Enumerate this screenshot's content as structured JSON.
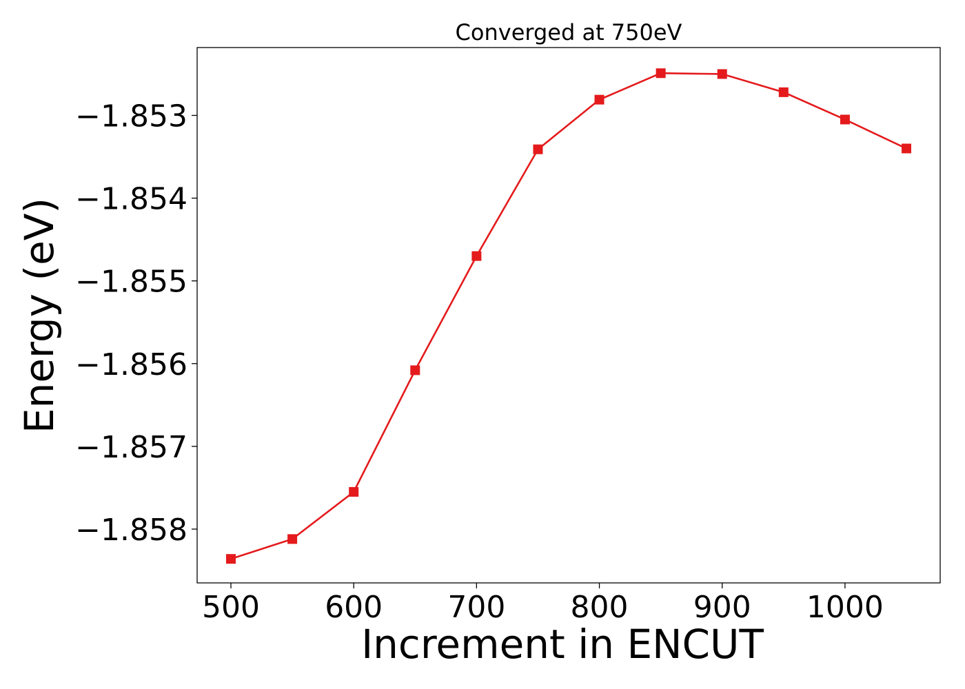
{
  "chart_data": {
    "type": "line",
    "title": "Converged at 750eV",
    "xlabel": "Increment in ENCUT",
    "ylabel": "Energy (eV)",
    "xlim": [
      472.5,
      1077.5
    ],
    "ylim": [
      -1.85865,
      -1.85218
    ],
    "x_ticks": [
      500,
      600,
      700,
      800,
      900,
      1000
    ],
    "x_tick_labels": [
      "500",
      "600",
      "700",
      "800",
      "900",
      "1000"
    ],
    "y_ticks": [
      -1.853,
      -1.854,
      -1.855,
      -1.856,
      -1.857,
      -1.858
    ],
    "y_tick_labels": [
      "−1.853",
      "−1.854",
      "−1.855",
      "−1.856",
      "−1.857",
      "−1.858"
    ],
    "grid": false,
    "legend": "none",
    "series": [
      {
        "color": "#e41a1c",
        "marker": "square",
        "x": [
          500,
          550,
          600,
          650,
          700,
          750,
          800,
          850,
          900,
          950,
          1000,
          1050
        ],
        "y": [
          -1.85836,
          -1.85812,
          -1.85755,
          -1.85608,
          -1.8547,
          -1.85341,
          -1.85281,
          -1.85249,
          -1.8525,
          -1.85272,
          -1.85305,
          -1.8534
        ]
      }
    ]
  }
}
